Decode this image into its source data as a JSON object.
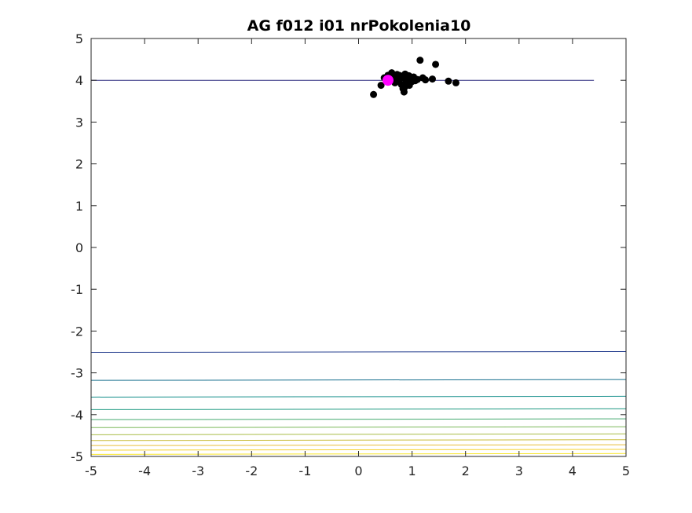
{
  "chart_data": {
    "type": "scatter",
    "title": "AG f012 i01 nrPokolenia10",
    "xlabel": "",
    "ylabel": "",
    "xlim": [
      -5,
      5
    ],
    "ylim": [
      -5,
      5
    ],
    "xticks": [
      "-5",
      "-4",
      "-3",
      "-2",
      "-1",
      "0",
      "1",
      "2",
      "3",
      "4",
      "5"
    ],
    "yticks": [
      "5",
      "4",
      "3",
      "2",
      "1",
      "0",
      "-1",
      "-2",
      "-3",
      "-4",
      "-5"
    ],
    "grid": false,
    "legend": "none",
    "contours": [
      {
        "y_left": 4.0,
        "y_right": 4.0,
        "x_end": 4.4,
        "color": "#2b2a7e"
      },
      {
        "y_left": -2.51,
        "y_right": -2.49,
        "x_end": 5,
        "color": "#263f8f"
      },
      {
        "y_left": -3.18,
        "y_right": -3.16,
        "x_end": 5,
        "color": "#176f8e"
      },
      {
        "y_left": -3.58,
        "y_right": -3.56,
        "x_end": 5,
        "color": "#138e8a"
      },
      {
        "y_left": -3.88,
        "y_right": -3.86,
        "x_end": 5,
        "color": "#1f9a82"
      },
      {
        "y_left": -4.12,
        "y_right": -4.1,
        "x_end": 5,
        "color": "#43a96f"
      },
      {
        "y_left": -4.31,
        "y_right": -4.29,
        "x_end": 5,
        "color": "#7bb85a"
      },
      {
        "y_left": -4.48,
        "y_right": -4.46,
        "x_end": 5,
        "color": "#a8bc46"
      },
      {
        "y_left": -4.62,
        "y_right": -4.6,
        "x_end": 5,
        "color": "#cbbd3c"
      },
      {
        "y_left": -4.74,
        "y_right": -4.72,
        "x_end": 5,
        "color": "#e8be39"
      },
      {
        "y_left": -4.85,
        "y_right": -4.83,
        "x_end": 5,
        "color": "#f5d232"
      },
      {
        "y_left": -4.95,
        "y_right": -4.93,
        "x_end": 5,
        "color": "#f9e62a"
      }
    ],
    "series": [
      {
        "marker_color": "#000000",
        "points": [
          [
            0.28,
            3.66
          ],
          [
            0.42,
            3.88
          ],
          [
            0.48,
            4.06
          ],
          [
            0.55,
            4.12
          ],
          [
            0.6,
            4.1
          ],
          [
            0.62,
            4.18
          ],
          [
            0.65,
            4.0
          ],
          [
            0.68,
            3.94
          ],
          [
            0.7,
            4.08
          ],
          [
            0.72,
            4.14
          ],
          [
            0.75,
            3.98
          ],
          [
            0.78,
            4.05
          ],
          [
            0.8,
            3.9
          ],
          [
            0.82,
            4.1
          ],
          [
            0.85,
            3.72
          ],
          [
            0.86,
            3.83
          ],
          [
            0.88,
            4.02
          ],
          [
            0.9,
            3.95
          ],
          [
            0.92,
            4.08
          ],
          [
            0.95,
            3.88
          ],
          [
            0.98,
            4.04
          ],
          [
            1.0,
            3.97
          ],
          [
            1.03,
            4.08
          ],
          [
            1.06,
            3.99
          ],
          [
            1.1,
            4.02
          ],
          [
            1.15,
            4.48
          ],
          [
            1.2,
            4.06
          ],
          [
            1.25,
            4.01
          ],
          [
            1.38,
            4.03
          ],
          [
            1.44,
            4.38
          ],
          [
            1.68,
            3.98
          ],
          [
            1.82,
            3.94
          ],
          [
            0.76,
            4.12
          ],
          [
            0.87,
            4.15
          ],
          [
            0.94,
            4.11
          ],
          [
            0.83,
            3.8
          ]
        ]
      },
      {
        "marker_color": "#ff00ff",
        "points": [
          [
            0.55,
            4.0
          ]
        ]
      }
    ]
  }
}
